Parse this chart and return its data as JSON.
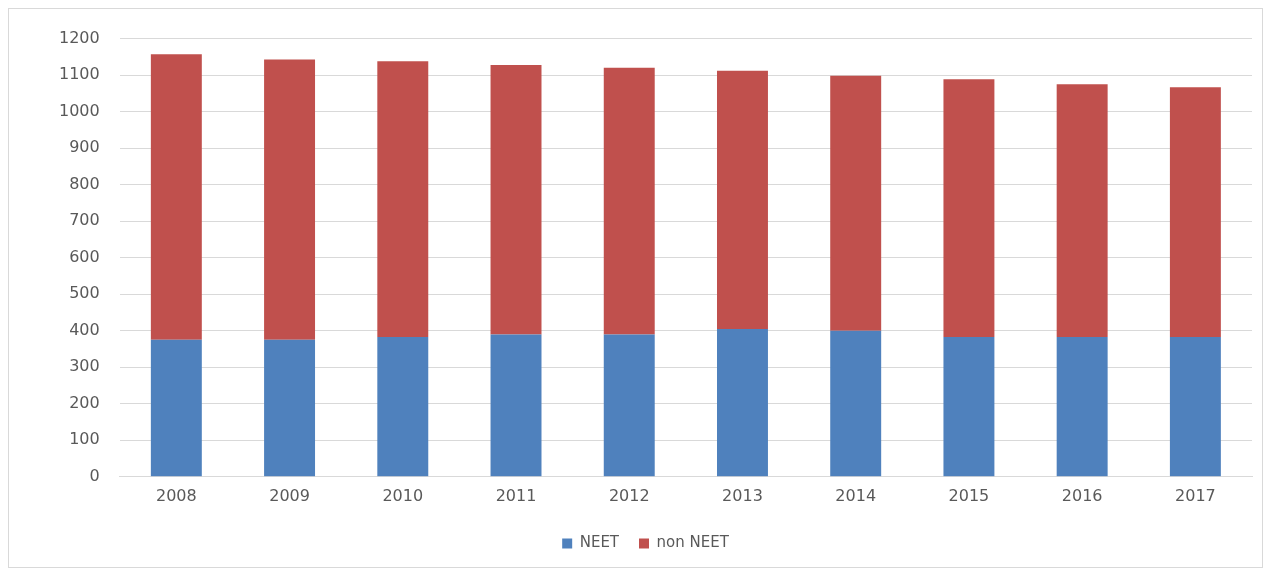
{
  "chart_data": {
    "type": "bar",
    "stacked": true,
    "categories": [
      "2008",
      "2009",
      "2010",
      "2011",
      "2012",
      "2013",
      "2014",
      "2015",
      "2016",
      "2017"
    ],
    "series": [
      {
        "name": "NEET",
        "color": "#4f81bd",
        "values": [
          375,
          375,
          383,
          390,
          390,
          405,
          400,
          383,
          383,
          383
        ]
      },
      {
        "name": "non NEET",
        "color": "#c0504d",
        "values": [
          782,
          768,
          755,
          738,
          730,
          707,
          698,
          706,
          692,
          684
        ]
      }
    ],
    "ylim": [
      0,
      1200
    ],
    "yticks": [
      0,
      100,
      200,
      300,
      400,
      500,
      600,
      700,
      800,
      900,
      1000,
      1100,
      1200
    ],
    "grid": "y",
    "legend": "bottom"
  }
}
